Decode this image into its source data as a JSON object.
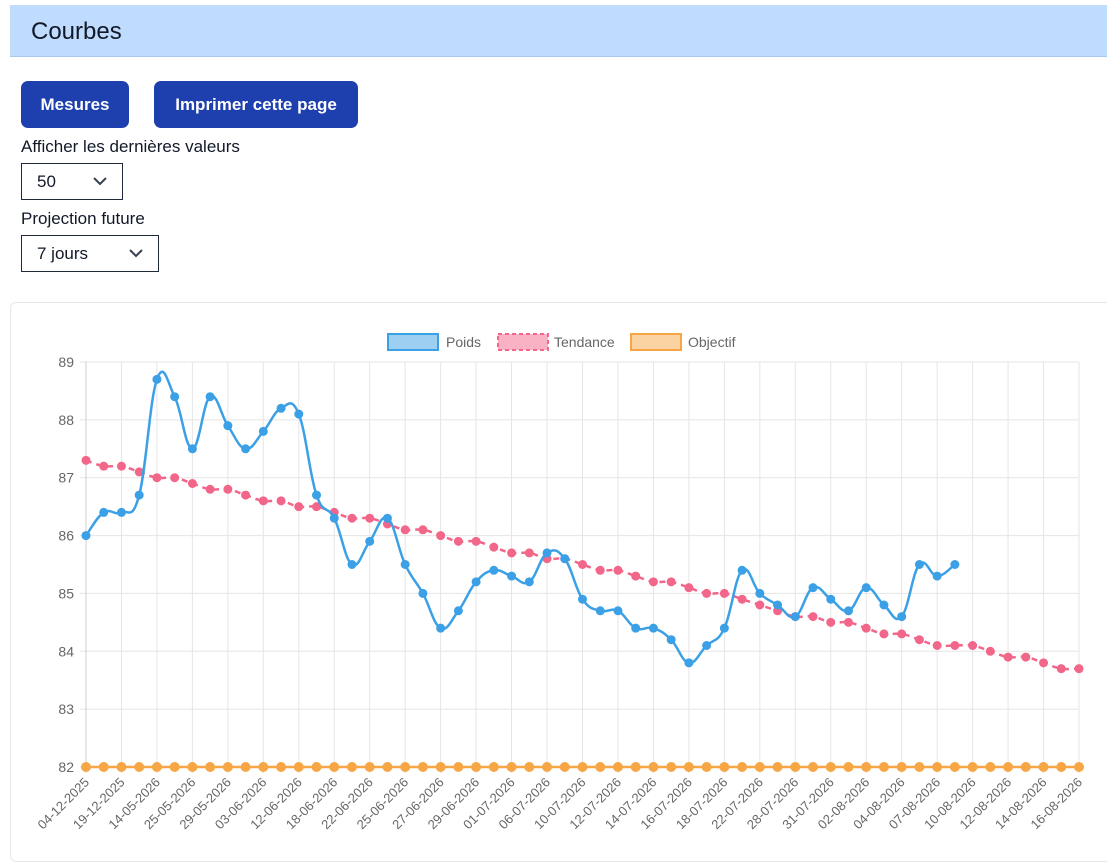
{
  "header": {
    "title": "Courbes"
  },
  "toolbar": {
    "mesures_label": "Mesures",
    "print_label": "Imprimer cette page"
  },
  "filters": {
    "last_values_label": "Afficher les dernières valeurs",
    "last_values_selected": "50",
    "projection_label": "Projection future",
    "projection_selected": "7 jours"
  },
  "colors": {
    "poids": "#3ba0e6",
    "tendance": "#f2668a",
    "objectif": "#f7a645",
    "header_bg": "#bfdbfe",
    "button_bg": "#1e40af"
  },
  "chart_data": {
    "type": "line",
    "legend_position": "top-center",
    "grid": true,
    "ylim": [
      82,
      89
    ],
    "y_ticks": [
      82,
      83,
      84,
      85,
      86,
      87,
      88,
      89
    ],
    "x_tick_labels": [
      "04-12-2025",
      "19-12-2025",
      "14-05-2026",
      "25-05-2026",
      "29-05-2026",
      "03-06-2026",
      "12-06-2026",
      "18-06-2026",
      "22-06-2026",
      "25-06-2026",
      "27-06-2026",
      "29-06-2026",
      "01-07-2026",
      "06-07-2026",
      "10-07-2026",
      "12-07-2026",
      "14-07-2026",
      "16-07-2026",
      "18-07-2026",
      "22-07-2026",
      "28-07-2026",
      "31-07-2026",
      "02-08-2026",
      "04-08-2026",
      "07-08-2026",
      "10-08-2026",
      "12-08-2026",
      "14-08-2026",
      "16-08-2026"
    ],
    "series": [
      {
        "name": "Poids",
        "style": "solid",
        "values": [
          86.0,
          86.4,
          86.4,
          86.7,
          88.7,
          88.4,
          87.5,
          88.4,
          87.9,
          87.5,
          87.8,
          88.2,
          88.1,
          86.7,
          86.3,
          85.5,
          85.9,
          86.3,
          85.5,
          85.0,
          84.4,
          84.7,
          85.2,
          85.4,
          85.3,
          85.2,
          85.7,
          85.6,
          84.9,
          84.7,
          84.7,
          84.4,
          84.4,
          84.2,
          83.8,
          84.1,
          84.4,
          85.4,
          85.0,
          84.8,
          84.6,
          85.1,
          84.9,
          84.7,
          85.1,
          84.8,
          84.6,
          85.5,
          85.3,
          85.5
        ]
      },
      {
        "name": "Tendance",
        "style": "dashed",
        "values": [
          87.3,
          87.2,
          87.2,
          87.1,
          87.0,
          87.0,
          86.9,
          86.8,
          86.8,
          86.7,
          86.6,
          86.6,
          86.5,
          86.5,
          86.4,
          86.3,
          86.3,
          86.2,
          86.1,
          86.1,
          86.0,
          85.9,
          85.9,
          85.8,
          85.7,
          85.7,
          85.6,
          85.6,
          85.5,
          85.4,
          85.4,
          85.3,
          85.2,
          85.2,
          85.1,
          85.0,
          85.0,
          84.9,
          84.8,
          84.7,
          84.6,
          84.6,
          84.5,
          84.5,
          84.4,
          84.3,
          84.3,
          84.2,
          84.1,
          84.1,
          84.1,
          84.0,
          83.9,
          83.9,
          83.8,
          83.7,
          83.7
        ]
      },
      {
        "name": "Objectif",
        "style": "solid",
        "values": [
          82,
          82,
          82,
          82,
          82,
          82,
          82,
          82,
          82,
          82,
          82,
          82,
          82,
          82,
          82,
          82,
          82,
          82,
          82,
          82,
          82,
          82,
          82,
          82,
          82,
          82,
          82,
          82,
          82,
          82,
          82,
          82,
          82,
          82,
          82,
          82,
          82,
          82,
          82,
          82,
          82,
          82,
          82,
          82,
          82,
          82,
          82,
          82,
          82,
          82,
          82,
          82,
          82,
          82,
          82,
          82,
          82
        ]
      }
    ]
  }
}
